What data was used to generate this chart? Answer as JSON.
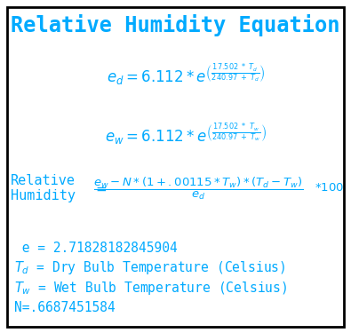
{
  "title": "Relative Humidity Equation",
  "bg_color": "#ffffff",
  "text_color": "#00aaff",
  "border_color": "#000000",
  "title_fontsize": 17,
  "eq_fontsize": 12,
  "info_fontsize": 10.5,
  "rh_label_fontsize": 11,
  "fig_width": 3.95,
  "fig_height": 3.75,
  "dpi": 100
}
